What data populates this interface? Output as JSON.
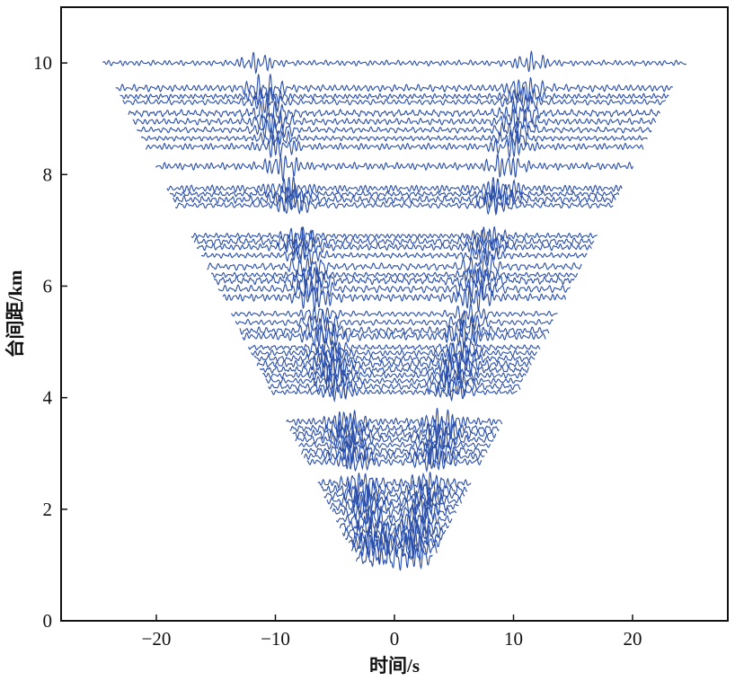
{
  "chart_data": {
    "type": "line",
    "subtype": "seismic-wiggle-record-section",
    "title": "",
    "xlabel": "时间/s",
    "ylabel": "台间距/km",
    "xlim": [
      -28,
      28
    ],
    "ylim": [
      0,
      11
    ],
    "x_ticks": [
      -20,
      -10,
      0,
      10,
      20
    ],
    "x_tick_labels": [
      "−20",
      "−10",
      "0",
      "10",
      "20"
    ],
    "y_ticks": [
      0,
      2,
      4,
      6,
      8,
      10
    ],
    "y_tick_labels": [
      "0",
      "2",
      "4",
      "6",
      "8",
      "10"
    ],
    "grid": false,
    "legend": "none",
    "trace_color": "#2b4fa8",
    "trace_extent": "each trace spans roughly ±(2.4 × distance + 0.5) s, forming a V-shaped record section",
    "signal_arrival_velocity_km_per_s": 0.87,
    "trace_distances_km": [
      1.13,
      1.3,
      1.4,
      1.5,
      1.6,
      1.7,
      1.82,
      1.95,
      2.05,
      2.15,
      2.25,
      2.35,
      2.47,
      2.85,
      2.95,
      3.05,
      3.15,
      3.25,
      3.35,
      3.45,
      3.57,
      4.1,
      4.2,
      4.3,
      4.4,
      4.5,
      4.6,
      4.7,
      4.8,
      4.9,
      5.1,
      5.2,
      5.35,
      5.5,
      5.8,
      5.95,
      6.1,
      6.2,
      6.35,
      6.55,
      6.7,
      6.8,
      6.9,
      7.45,
      7.55,
      7.65,
      7.75,
      8.15,
      8.5,
      8.65,
      8.8,
      8.95,
      9.1,
      9.3,
      9.4,
      9.55,
      10.0
    ]
  }
}
